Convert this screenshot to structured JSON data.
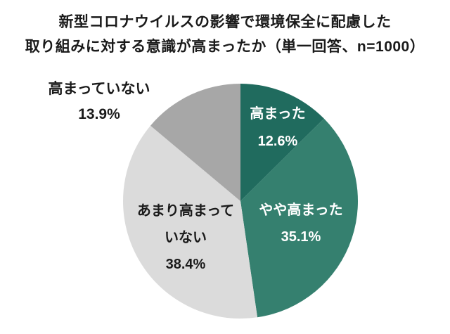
{
  "page": {
    "background": "#FFFFFF",
    "text_color": "#1A1A1A"
  },
  "title_lines": [
    "新型コロナウイルスの影響で環境保全に配慮した",
    "取り組みに対する意識が高まったか（単一回答、n=1000）"
  ],
  "chart_data": {
    "type": "pie",
    "title": "新型コロナウイルスの影響で環境保全に配慮した取り組みに対する意識が高まったか（単一回答、n=1000）",
    "start_angle": "12-oclock",
    "direction": "clockwise",
    "legend_position": "none",
    "unit": "%",
    "slices": [
      {
        "key": "takamatta",
        "label": "高まった",
        "value": 12.6,
        "display_pct": "12.6%",
        "color": "#206B5E",
        "label_color": "#FFFFFF",
        "label_position": "inside",
        "label_lines": [
          "高まった",
          "12.6%"
        ]
      },
      {
        "key": "yaya-takamatta",
        "label": "やや高まった",
        "value": 35.1,
        "display_pct": "35.1%",
        "color": "#35806F",
        "label_color": "#FFFFFF",
        "label_position": "inside",
        "label_lines": [
          "やや高まった",
          "35.1%"
        ]
      },
      {
        "key": "amari-takamatte-inai",
        "label": "あまり高まっていない",
        "value": 38.4,
        "display_pct": "38.4%",
        "color": "#DBDBDB",
        "label_color": "#1A1A1A",
        "label_position": "inside",
        "label_lines": [
          "あまり高まって",
          "いない",
          "38.4%"
        ]
      },
      {
        "key": "takamatte-inai",
        "label": "高まっていない",
        "value": 13.9,
        "display_pct": "13.9%",
        "color": "#A7A7A7",
        "label_color": "#1A1A1A",
        "label_position": "outside",
        "label_lines": [
          "高まっていない",
          "13.9%"
        ]
      }
    ]
  }
}
